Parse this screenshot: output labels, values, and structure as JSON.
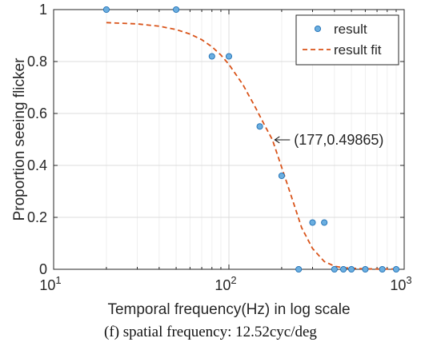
{
  "chart_data": {
    "type": "scatter",
    "xscale": "log",
    "xlim": [
      10,
      1000
    ],
    "ylim": [
      0,
      1
    ],
    "grid": true,
    "xlabel": "Temporal frequency(Hz) in log scale",
    "ylabel": "Proportion seeing flicker",
    "x_ticks": [
      {
        "base": "10",
        "exp": "1"
      },
      {
        "base": "10",
        "exp": "2"
      },
      {
        "base": "10",
        "exp": "3"
      }
    ],
    "y_ticks": [
      "0",
      "0.2",
      "0.4",
      "0.6",
      "0.8",
      "1"
    ],
    "legend": {
      "placement": "top-right"
    },
    "series": [
      {
        "name": "result",
        "kind": "markers",
        "color": "#6aaee0",
        "edge_color": "#1f6fb4",
        "x": [
          20,
          50,
          80,
          100,
          150,
          200,
          250,
          300,
          350,
          400,
          450,
          500,
          600,
          750,
          900
        ],
        "y": [
          1,
          1,
          0.82,
          0.82,
          0.55,
          0.36,
          0,
          0.18,
          0.18,
          0,
          0,
          0,
          0,
          0,
          0
        ]
      },
      {
        "name": "result fit",
        "kind": "dashed-line",
        "color": "#d95319",
        "x": [
          20,
          30,
          40,
          50,
          60,
          70,
          80,
          90,
          100,
          120,
          140,
          160,
          177,
          200,
          230,
          260,
          300,
          350,
          400,
          450,
          500,
          600,
          700,
          800,
          900
        ],
        "y": [
          0.95,
          0.945,
          0.936,
          0.923,
          0.906,
          0.884,
          0.857,
          0.825,
          0.789,
          0.712,
          0.63,
          0.554,
          0.499,
          0.393,
          0.27,
          0.16,
          0.08,
          0.03,
          0.012,
          0.006,
          0.004,
          0.002,
          0.001,
          0.001,
          0.001
        ]
      }
    ],
    "annotation": {
      "x": 177,
      "y": 0.49865,
      "text": "(177,0.49865)"
    }
  },
  "caption": "(f) spatial frequency: 12.52cyc/deg"
}
